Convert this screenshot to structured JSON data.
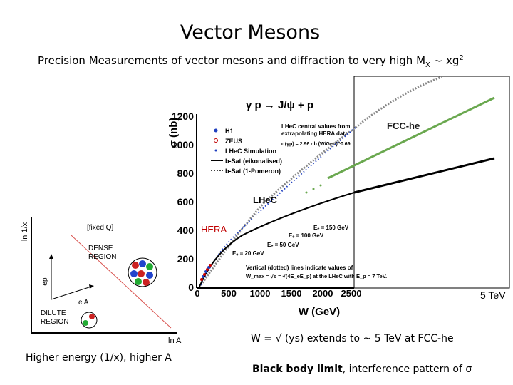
{
  "title": "Vector Mesons",
  "subtitle": {
    "prefix": "Precision Measurements of vector mesons and diffraction to very high M",
    "sub": "X",
    "mid": " ~ xg",
    "sup": "2"
  },
  "colors": {
    "fcc_line": "#6aa84f",
    "lhec_line": "#000000",
    "hera_points": "#cc0000",
    "sim_points": "#1f3fbf",
    "dense_diag": "#d9534f"
  },
  "plot": {
    "reaction": "γ p → J/ψ + p",
    "ylabel": "σ (nb)",
    "xlabel": "W (GeV)",
    "x_ticks": [
      "0",
      "500",
      "1000",
      "1500",
      "2000",
      "2500"
    ],
    "y_ticks": [
      "0",
      "200",
      "400",
      "600",
      "800",
      "1000",
      "1200"
    ],
    "legend": [
      "H1",
      "ZEUS",
      "LHeC Simulation",
      "b-Sat (eikonalised)",
      "b-Sat (1-Pomeron)"
    ],
    "note_top": "LHeC central values from extrapolating HERA data:",
    "note_formula": "σ(γp) = 2.96 nb (W/GeV)^0.69",
    "energy_labels": [
      "Eₑ = 150 GeV",
      "Eₑ = 100 GeV",
      "Eₑ = 50 GeV",
      "Eₑ = 20 GeV"
    ],
    "note_bottom_1": "Vertical (dotted) lines indicate values of",
    "note_bottom_2": "W_max = √s = √(4E_eE_p) at the LHeC with E_p = 7 TeV."
  },
  "labels": {
    "fcc": "FCC-he",
    "lhec": "LHeC",
    "hera": "HERA",
    "tev": "5 TeV"
  },
  "diagram": {
    "ylabel": "ln 1/x",
    "xlabel": "ln A",
    "fixed_q": "[fixed Q]",
    "dense_1": "DENSE",
    "dense_2": "REGION",
    "dilute_1": "DILUTE",
    "dilute_2": "REGION",
    "ep": "ep",
    "ea": "e A"
  },
  "captions": {
    "w_extends": "W = √ (ys) extends to ~ 5 TeV at FCC-he",
    "energy": "Higher energy (1/x), higher A",
    "bb_bold": "Black body limit",
    "bb_rest": ", interference pattern of σ"
  }
}
